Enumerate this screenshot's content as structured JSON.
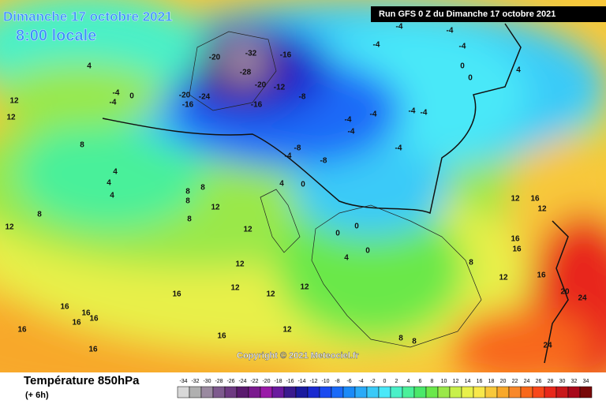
{
  "header": {
    "title": "Dimanche 17 octobre 2021",
    "subtitle": "8:00 locale",
    "run": "Run GFS 0 Z du Dimanche 17 octobre 2021"
  },
  "map": {
    "labels": [
      -20,
      -32,
      -28,
      -16,
      -20,
      -12,
      -24,
      -20,
      -16,
      -8,
      -16,
      -4,
      -4,
      0,
      4,
      12,
      12,
      8,
      4,
      4,
      4,
      8,
      12,
      8,
      8,
      8,
      8,
      12,
      12,
      4,
      0,
      -4,
      -8,
      -8,
      -4,
      -4,
      -4,
      -4,
      -4,
      -4,
      0,
      0,
      -4,
      -4,
      -4,
      -4,
      4,
      12,
      16,
      12,
      16,
      16,
      16,
      12,
      8,
      20,
      24,
      24,
      0,
      0,
      4,
      0,
      12,
      12,
      12,
      16,
      12,
      16,
      16,
      16,
      16,
      16,
      16,
      16,
      12,
      8,
      8
    ]
  },
  "copyright": "Copyright © 2021 Meteociel.fr",
  "footer": {
    "title": "Température 850hPa",
    "lead": "(+ 6h)"
  },
  "scale": {
    "values": [
      -34,
      -32,
      -30,
      -28,
      -26,
      -24,
      -22,
      -20,
      -18,
      -16,
      -14,
      -12,
      -10,
      -8,
      -6,
      -4,
      -2,
      0,
      2,
      4,
      6,
      8,
      10,
      12,
      14,
      16,
      18,
      20,
      22,
      24,
      26,
      28,
      30,
      32,
      34
    ],
    "colors": [
      "#d8d8d8",
      "#b0b0b0",
      "#9a8aa0",
      "#7e5a8e",
      "#6e3a82",
      "#5a1a6e",
      "#7a1a8e",
      "#9a1aa8",
      "#6a1a9e",
      "#3a1a8e",
      "#1a1a9e",
      "#1a2ad0",
      "#1a4af0",
      "#1a6af8",
      "#1a8af8",
      "#2aaaf8",
      "#3acaf8",
      "#4ae8f8",
      "#4af0c8",
      "#4af09a",
      "#4ae86a",
      "#6ae84a",
      "#9ae84a",
      "#c8f04a",
      "#e8f04a",
      "#f8e84a",
      "#f8c83a",
      "#f8a82a",
      "#f8882a",
      "#f8681a",
      "#f8481a",
      "#e8281a",
      "#c8181a",
      "#a8081a",
      "#780808"
    ]
  }
}
